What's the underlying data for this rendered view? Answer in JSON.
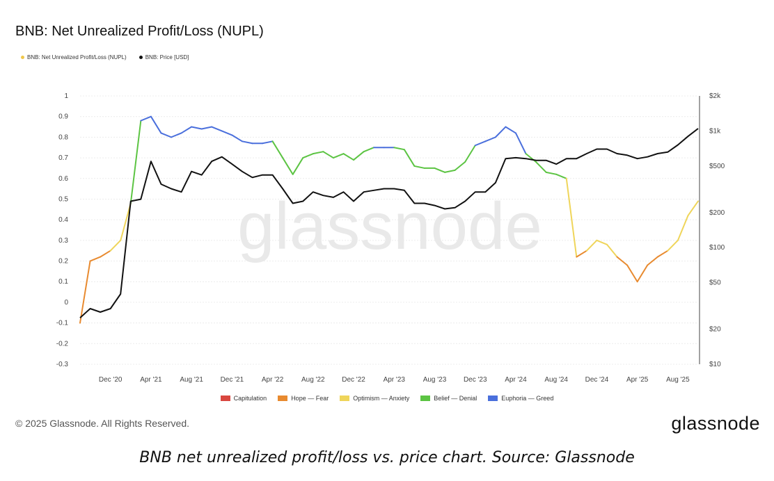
{
  "chart_data": {
    "type": "line",
    "title": "BNB: Net Unrealized Profit/Loss (NUPL)",
    "legend_top": [
      {
        "label": "BNB: Net Unrealized Profit/Loss (NUPL)",
        "color": "#f0c74a"
      },
      {
        "label": "BNB: Price [USD]",
        "color": "#111111"
      }
    ],
    "left_axis": {
      "ticks": [
        "1",
        "0.9",
        "0.8",
        "0.7",
        "0.6",
        "0.5",
        "0.4",
        "0.3",
        "0.2",
        "0.1",
        "0",
        "-0.1",
        "-0.2",
        "-0.3"
      ],
      "ylim": [
        -0.3,
        1
      ]
    },
    "right_axis": {
      "ticks": [
        "$2k",
        "$1k",
        "$500",
        "$200",
        "$100",
        "$50",
        "$20",
        "$10"
      ],
      "values": [
        2000,
        1000,
        500,
        200,
        100,
        50,
        20,
        10
      ],
      "scale": "log",
      "ylim": [
        10,
        2000
      ]
    },
    "x_ticks": [
      "Dec '20",
      "Apr '21",
      "Aug '21",
      "Dec '21",
      "Apr '22",
      "Aug '22",
      "Dec '22",
      "Apr '23",
      "Aug '23",
      "Dec '23",
      "Apr '24",
      "Aug '24",
      "Dec '24",
      "Apr '25",
      "Aug '25"
    ],
    "x_range": [
      "2020-09",
      "2025-10"
    ],
    "watermark": "glassnode",
    "zones": [
      {
        "name": "Capitulation",
        "color": "#d9473f"
      },
      {
        "name": "Hope — Fear",
        "color": "#e88a2f"
      },
      {
        "name": "Optimism — Anxiety",
        "color": "#efd55a"
      },
      {
        "name": "Belief — Denial",
        "color": "#5cc443"
      },
      {
        "name": "Euphoria — Greed",
        "color": "#4a6fdc"
      }
    ],
    "series": [
      {
        "name": "BNB: Net Unrealized Profit/Loss (NUPL)",
        "x": [
          "2020-09",
          "2020-10",
          "2020-11",
          "2020-12",
          "2021-01",
          "2021-02",
          "2021-03",
          "2021-04",
          "2021-05",
          "2021-06",
          "2021-07",
          "2021-08",
          "2021-09",
          "2021-10",
          "2021-11",
          "2021-12",
          "2022-01",
          "2022-02",
          "2022-03",
          "2022-04",
          "2022-05",
          "2022-06",
          "2022-07",
          "2022-08",
          "2022-09",
          "2022-10",
          "2022-11",
          "2022-12",
          "2023-01",
          "2023-02",
          "2023-03",
          "2023-04",
          "2023-05",
          "2023-06",
          "2023-07",
          "2023-08",
          "2023-09",
          "2023-10",
          "2023-11",
          "2023-12",
          "2024-01",
          "2024-02",
          "2024-03",
          "2024-04",
          "2024-05",
          "2024-06",
          "2024-07",
          "2024-08",
          "2024-09",
          "2024-10",
          "2024-11",
          "2024-12",
          "2025-01",
          "2025-02",
          "2025-03",
          "2025-04",
          "2025-05",
          "2025-06",
          "2025-07",
          "2025-08",
          "2025-09",
          "2025-10"
        ],
        "values": [
          -0.1,
          0.2,
          0.22,
          0.25,
          0.3,
          0.48,
          0.88,
          0.9,
          0.82,
          0.8,
          0.82,
          0.85,
          0.84,
          0.85,
          0.83,
          0.81,
          0.78,
          0.77,
          0.77,
          0.78,
          0.7,
          0.62,
          0.7,
          0.72,
          0.73,
          0.7,
          0.72,
          0.69,
          0.73,
          0.75,
          0.75,
          0.75,
          0.74,
          0.66,
          0.65,
          0.65,
          0.63,
          0.64,
          0.68,
          0.76,
          0.78,
          0.8,
          0.85,
          0.82,
          0.72,
          0.68,
          0.63,
          0.62,
          0.6,
          0.22,
          0.25,
          0.3,
          0.28,
          0.22,
          0.18,
          0.1,
          0.18,
          0.22,
          0.25,
          0.3,
          0.42,
          0.49
        ]
      },
      {
        "name": "BNB: Price [USD]",
        "x": [
          "2020-09",
          "2020-10",
          "2020-11",
          "2020-12",
          "2021-01",
          "2021-02",
          "2021-03",
          "2021-04",
          "2021-05",
          "2021-06",
          "2021-07",
          "2021-08",
          "2021-09",
          "2021-10",
          "2021-11",
          "2021-12",
          "2022-01",
          "2022-02",
          "2022-03",
          "2022-04",
          "2022-05",
          "2022-06",
          "2022-07",
          "2022-08",
          "2022-09",
          "2022-10",
          "2022-11",
          "2022-12",
          "2023-01",
          "2023-02",
          "2023-03",
          "2023-04",
          "2023-05",
          "2023-06",
          "2023-07",
          "2023-08",
          "2023-09",
          "2023-10",
          "2023-11",
          "2023-12",
          "2024-01",
          "2024-02",
          "2024-03",
          "2024-04",
          "2024-05",
          "2024-06",
          "2024-07",
          "2024-08",
          "2024-09",
          "2024-10",
          "2024-11",
          "2024-12",
          "2025-01",
          "2025-02",
          "2025-03",
          "2025-04",
          "2025-05",
          "2025-06",
          "2025-07",
          "2025-08",
          "2025-09",
          "2025-10"
        ],
        "values": [
          25,
          30,
          28,
          30,
          40,
          250,
          260,
          550,
          350,
          320,
          300,
          450,
          420,
          550,
          600,
          520,
          450,
          400,
          420,
          420,
          320,
          240,
          250,
          300,
          280,
          270,
          300,
          250,
          300,
          310,
          320,
          320,
          310,
          240,
          240,
          230,
          215,
          220,
          250,
          300,
          300,
          360,
          580,
          590,
          580,
          560,
          560,
          520,
          580,
          580,
          640,
          700,
          700,
          640,
          620,
          580,
          600,
          640,
          660,
          760,
          900,
          1050
        ]
      }
    ]
  },
  "footer": {
    "copyright": "© 2025 Glassnode. All Rights Reserved.",
    "brand": "glassnode",
    "caption": "BNB net unrealized profit/loss vs. price chart. Source: Glassnode"
  }
}
